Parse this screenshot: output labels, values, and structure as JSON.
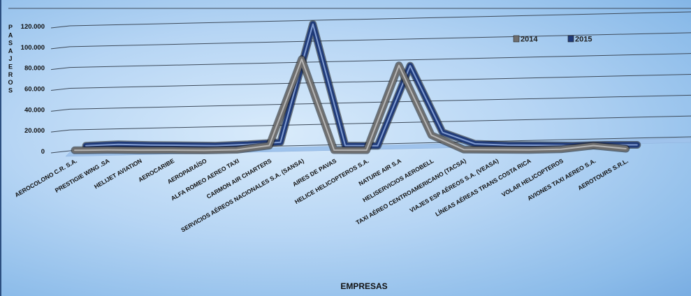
{
  "chart_data": {
    "type": "line",
    "title": "",
    "xlabel": "EMPRESAS",
    "ylabel": "PASAJEROS",
    "ylim": [
      0,
      120000
    ],
    "yticks": [
      "0",
      "20.000",
      "40.000",
      "60.000",
      "80.000",
      "100.000",
      "120.000"
    ],
    "grid": true,
    "legend_position": "top-right",
    "categories": [
      "AEROCOLONO C.R. S.A.",
      "PRESTIGIE WING .SA",
      "HELIJET AVIATION",
      "AEROCARIBE",
      "AEROPARAÍSO",
      "ALFA ROMEO AEREO TAXI",
      "CARMON AIR CHARTERS",
      "SERVICIOS AÉREOS NACIONALES S.A. (SANSA)",
      "AIRES DE PAVAS",
      "HELICE HELICOPTEROS S.A.",
      "NATURE AIR S.A",
      "HELISERVICIOS AEROBELL",
      "TAXI AÉREO CENTROAMERICANO (TACSA)",
      "VIAJES ESP AÉREOS S.A. (VEASA)",
      "LÍNEAS AÉREAS TRANS COSTA RICA",
      "VOLAR HELICOPTEROS",
      "AVIONES TAXI AEREO S.A.",
      "AEROTOURS S.R.L."
    ],
    "series": [
      {
        "name": "2014",
        "color": "#6e6e6e",
        "highlight": "#bdbdbd",
        "values": [
          500,
          800,
          600,
          700,
          400,
          1000,
          5000,
          88000,
          700,
          600,
          82000,
          15000,
          1200,
          1000,
          900,
          1500,
          5000,
          2000
        ]
      },
      {
        "name": "2015",
        "color": "#1f3a78",
        "highlight": "#8aa6dc",
        "values": [
          200,
          1500,
          800,
          600,
          300,
          1500,
          3500,
          117000,
          300,
          200,
          77000,
          13000,
          2000,
          800,
          700,
          300,
          1000,
          1000
        ]
      }
    ]
  }
}
